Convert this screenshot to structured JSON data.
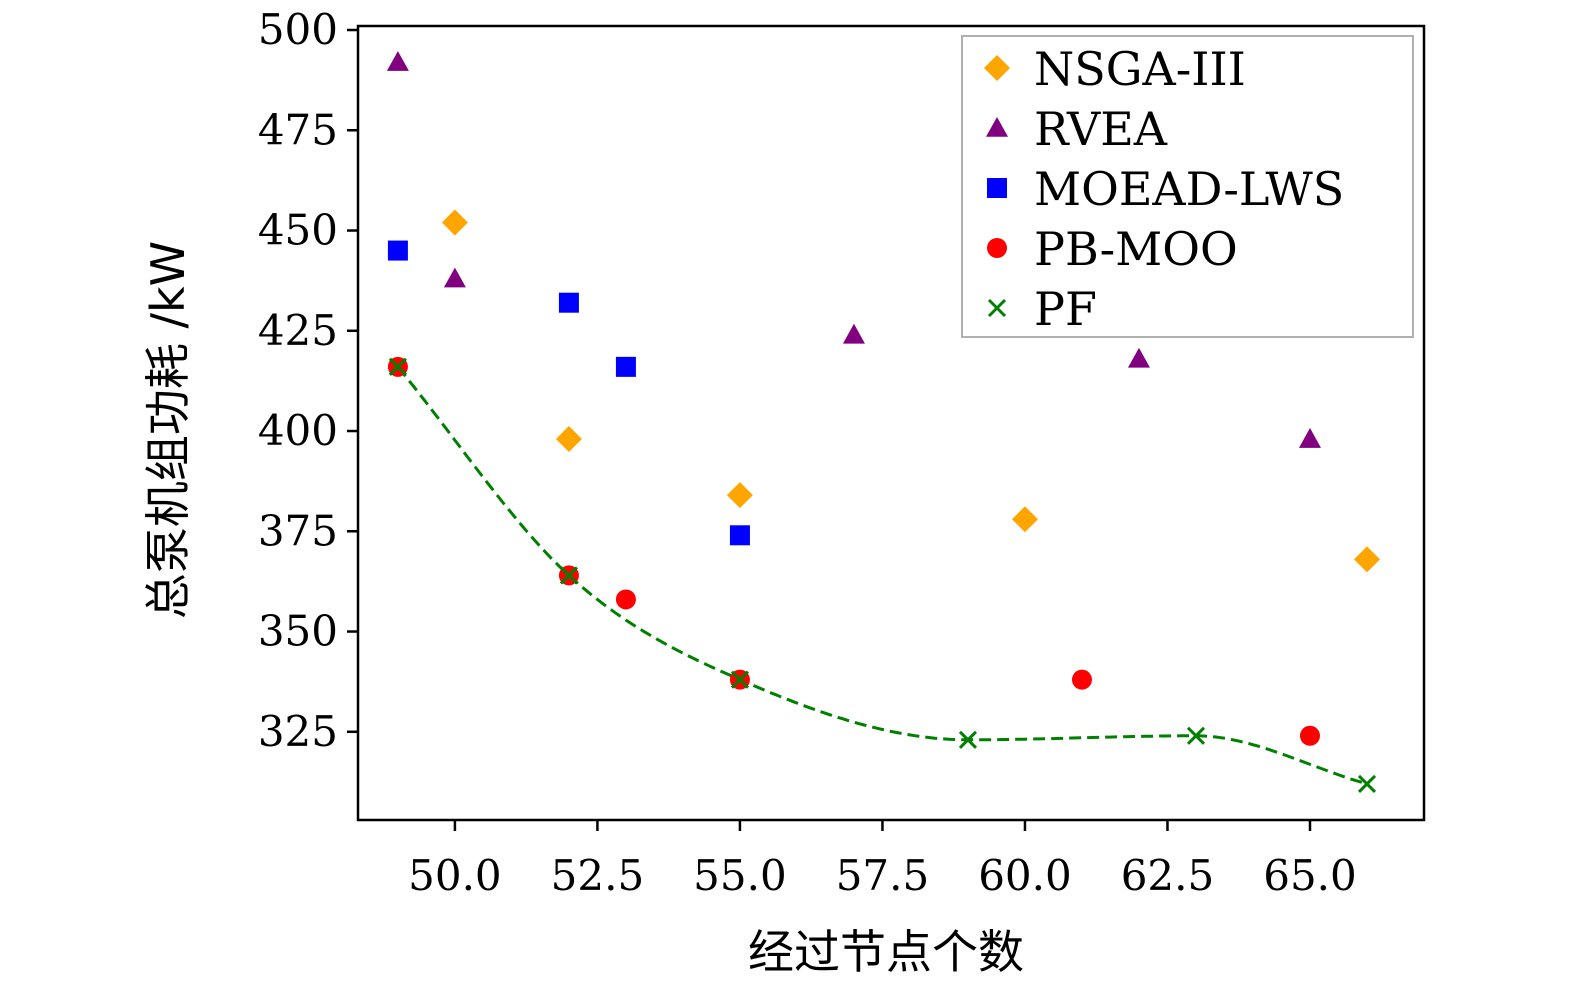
{
  "chart_data": {
    "type": "scatter",
    "title": "",
    "xlabel": "经过节点个数",
    "ylabel": "总泵机组功耗 /kW",
    "xlim": [
      48.3,
      67.0
    ],
    "ylim": [
      303,
      501
    ],
    "xticks": [
      "50.0",
      "52.5",
      "55.0",
      "57.5",
      "60.0",
      "62.5",
      "65.0"
    ],
    "yticks": [
      "325",
      "350",
      "375",
      "400",
      "425",
      "450",
      "475",
      "500"
    ],
    "grid": false,
    "legend": "top-right",
    "series": [
      {
        "name": "NSGA-III",
        "marker": "diamond",
        "color": "#FFA500",
        "points": [
          [
            50,
            452
          ],
          [
            52,
            398
          ],
          [
            55,
            384
          ],
          [
            60,
            378
          ],
          [
            66,
            368
          ]
        ]
      },
      {
        "name": "RVEA",
        "marker": "triangle",
        "color": "#800080",
        "points": [
          [
            49,
            492
          ],
          [
            50,
            438
          ],
          [
            57,
            424
          ],
          [
            62,
            418
          ],
          [
            65,
            398
          ]
        ]
      },
      {
        "name": "MOEAD-LWS",
        "marker": "square",
        "color": "#0000FF",
        "points": [
          [
            49,
            445
          ],
          [
            52,
            432
          ],
          [
            53,
            416
          ],
          [
            55,
            374
          ]
        ]
      },
      {
        "name": "PB-MOO",
        "marker": "circle",
        "color": "#FF0000",
        "points": [
          [
            49,
            416
          ],
          [
            52,
            364
          ],
          [
            53,
            358
          ],
          [
            55,
            338
          ],
          [
            61,
            338
          ],
          [
            65,
            324
          ]
        ]
      },
      {
        "name": "PF",
        "marker": "x",
        "color": "#008000",
        "points": [
          [
            49,
            416
          ],
          [
            52,
            364
          ],
          [
            55,
            338
          ],
          [
            59,
            323
          ],
          [
            63,
            324
          ],
          [
            66,
            312
          ]
        ],
        "curve": "dashed-smooth"
      }
    ]
  }
}
